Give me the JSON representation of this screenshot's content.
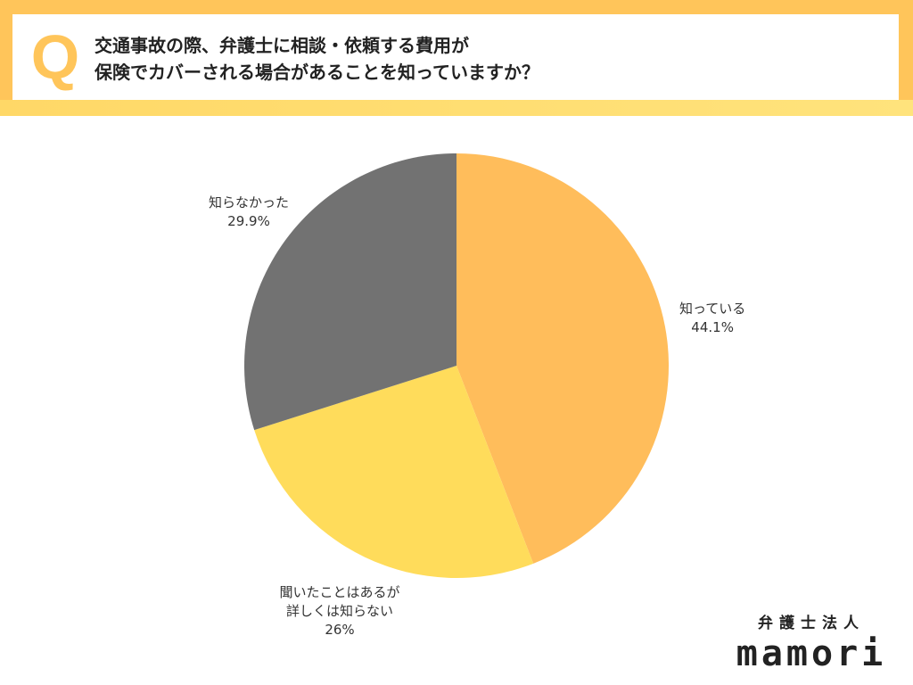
{
  "question": {
    "letter": "Q",
    "lines": [
      "交通事故の際、弁護士に相談・依頼する費用が",
      "保険でカバーされる場合があることを知っていますか？"
    ]
  },
  "chart_data": {
    "type": "pie",
    "slices": [
      {
        "lines": [
          "知っている"
        ],
        "value": 44.1,
        "display": "44.1%",
        "color": "#ffbd5b"
      },
      {
        "lines": [
          "聞いたことはあるが",
          "詳しくは知らない"
        ],
        "value": 26,
        "display": "26%",
        "color": "#ffdc5b"
      },
      {
        "lines": [
          "知らなかった"
        ],
        "value": 29.9,
        "display": "29.9%",
        "color": "#727272"
      }
    ],
    "start": "12 o'clock",
    "direction": "clockwise"
  },
  "brand": {
    "sub": "弁護士法人",
    "name": "mamori"
  }
}
